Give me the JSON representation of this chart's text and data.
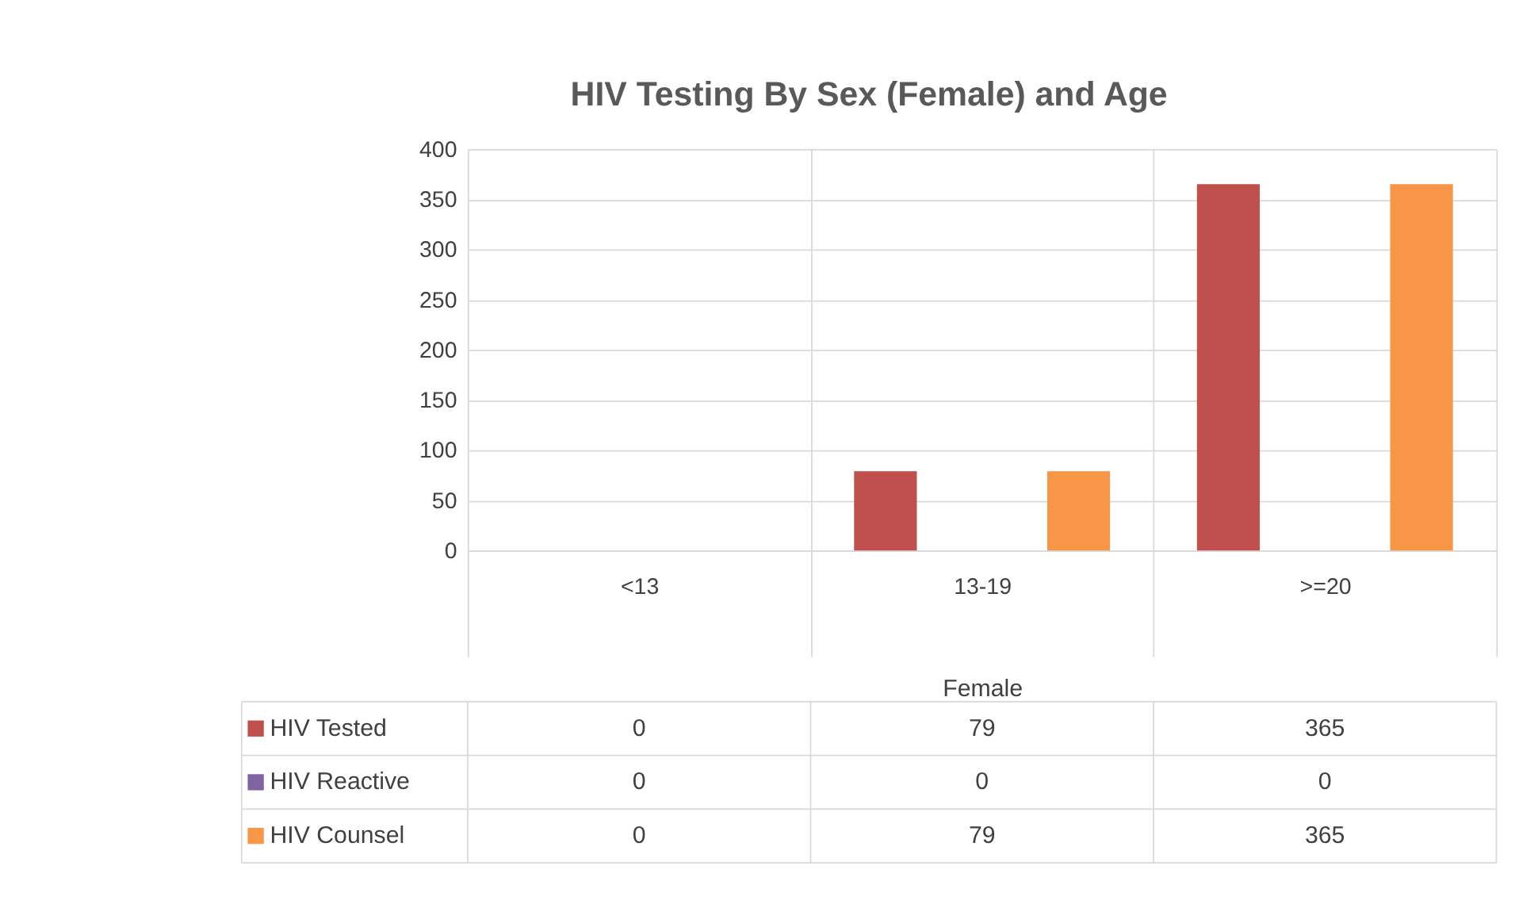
{
  "chart_data": {
    "type": "bar",
    "title": "HIV Testing By Sex (Female)  and Age",
    "xlabel": "Female",
    "categories": [
      "<13",
      "13-19",
      ">=20"
    ],
    "series": [
      {
        "name": "HIV Tested",
        "color": "#c0504d",
        "values": [
          0,
          79,
          365
        ]
      },
      {
        "name": "HIV Reactive",
        "color": "#8064a2",
        "values": [
          0,
          0,
          0
        ]
      },
      {
        "name": "HIV Counsel",
        "color": "#f79646",
        "values": [
          0,
          79,
          365
        ]
      }
    ],
    "ylim": [
      0,
      400
    ],
    "yticks": [
      0,
      50,
      100,
      150,
      200,
      250,
      300,
      350,
      400
    ],
    "grid": "y",
    "legend": "bottom",
    "data_labels": true
  }
}
